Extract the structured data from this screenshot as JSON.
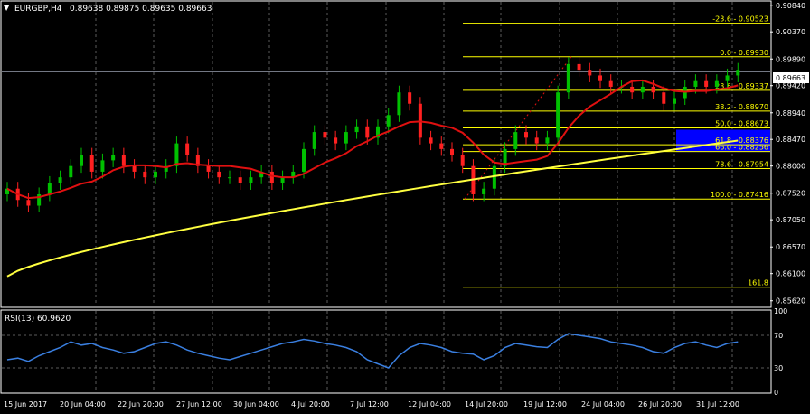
{
  "symbol_header": "EURGBP,H4",
  "ohlc_header": "0.89638 0.89875 0.89635 0.89663",
  "current_price": "0.89663",
  "indicator_label": "RSI(13) 60.9620",
  "colors": {
    "background": "#000000",
    "grid": "#5a5a5a",
    "text": "#ffffff",
    "bull_candle": "#00c000",
    "bear_candle": "#ff2020",
    "ma_fast": "#e01010",
    "ma_slow": "#ffff40",
    "fib": "#ffff00",
    "rsi": "#3a7fe0",
    "fib_box": "#0000ff"
  },
  "price_axis": [
    "0.90840",
    "0.90370",
    "0.89890",
    "0.89420",
    "0.88940",
    "0.88470",
    "0.88000",
    "0.87520",
    "0.87050",
    "0.86570",
    "0.86100",
    "0.85620"
  ],
  "rsi_axis": [
    "100",
    "70",
    "30",
    "0"
  ],
  "time_axis": [
    "15 Jun 2017",
    "20 Jun 04:00",
    "22 Jun 20:00",
    "27 Jun 12:00",
    "30 Jun 04:00",
    "4 Jul 20:00",
    "7 Jul 12:00",
    "12 Jul 04:00",
    "14 Jul 20:00",
    "19 Jul 12:00",
    "24 Jul 04:00",
    "26 Jul 20:00",
    "31 Jul 12:00"
  ],
  "fib_levels": [
    {
      "label": "-23.6 - 0.90523",
      "price": 0.90523
    },
    {
      "label": "0.0 - 0.89930",
      "price": 0.8993
    },
    {
      "label": "23.6 - 0.89337",
      "price": 0.89337
    },
    {
      "label": "38.2 - 0.88970",
      "price": 0.8897
    },
    {
      "label": "50.0 - 0.88673",
      "price": 0.88673
    },
    {
      "label": "61.8 - 0.88376",
      "price": 0.88376
    },
    {
      "label": "66.0 - 0.88256",
      "price": 0.88256
    },
    {
      "label": "78.6 - 0.87954",
      "price": 0.87954
    },
    {
      "label": "100.0 - 0.87416",
      "price": 0.87416
    },
    {
      "label": "161.8",
      "price": 0.8586
    }
  ],
  "chart_data": {
    "type": "candlestick",
    "price_range": [
      0.8552,
      0.909
    ],
    "rsi_range": [
      0,
      100
    ],
    "rsi_reference_levels": [
      70,
      30
    ],
    "close_series_approx": [
      0.876,
      0.874,
      0.873,
      0.875,
      0.877,
      0.878,
      0.88,
      0.882,
      0.879,
      0.881,
      0.882,
      0.88,
      0.879,
      0.878,
      0.879,
      0.88,
      0.884,
      0.882,
      0.88,
      0.879,
      0.878,
      0.878,
      0.877,
      0.878,
      0.879,
      0.877,
      0.878,
      0.879,
      0.883,
      0.886,
      0.885,
      0.884,
      0.886,
      0.887,
      0.885,
      0.887,
      0.889,
      0.893,
      0.891,
      0.885,
      0.884,
      0.883,
      0.882,
      0.88,
      0.875,
      0.876,
      0.88,
      0.883,
      0.886,
      0.885,
      0.884,
      0.885,
      0.893,
      0.898,
      0.897,
      0.896,
      0.895,
      0.894,
      0.894,
      0.893,
      0.894,
      0.893,
      0.891,
      0.892,
      0.894,
      0.895,
      0.894,
      0.895,
      0.896,
      0.897
    ],
    "rsi_series_approx": [
      40,
      42,
      38,
      45,
      50,
      55,
      62,
      58,
      60,
      55,
      52,
      48,
      50,
      55,
      60,
      62,
      58,
      52,
      48,
      45,
      42,
      40,
      44,
      48,
      52,
      56,
      60,
      62,
      65,
      63,
      60,
      58,
      55,
      50,
      40,
      35,
      30,
      45,
      55,
      60,
      58,
      55,
      50,
      48,
      47,
      40,
      45,
      55,
      60,
      58,
      56,
      55,
      65,
      72,
      70,
      68,
      66,
      62,
      60,
      58,
      55,
      50,
      48,
      55,
      60,
      62,
      58,
      55,
      60,
      62
    ],
    "moving_averages": [
      "fast (red)",
      "slow (yellow)"
    ]
  }
}
